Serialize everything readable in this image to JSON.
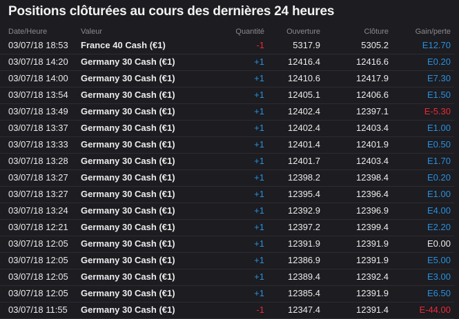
{
  "title": "Positions clôturées au cours des dernières 24 heures",
  "colors": {
    "background": "#1c1c21",
    "positive": "#2a90dc",
    "negative": "#ec2a36"
  },
  "columns": {
    "date": "Date/Heure",
    "value": "Valeur",
    "quantity": "Quantité",
    "open": "Ouverture",
    "close": "Clôture",
    "gain": "Gain/perte"
  },
  "rows": [
    {
      "date": "03/07/18 18:53",
      "value": "France 40 Cash (€1)",
      "quantity": "-1",
      "open": "5317.9",
      "close": "5305.2",
      "gain": "E12.70"
    },
    {
      "date": "03/07/18 14:20",
      "value": "Germany 30 Cash (€1)",
      "quantity": "+1",
      "open": "12416.4",
      "close": "12416.6",
      "gain": "E0.20"
    },
    {
      "date": "03/07/18 14:00",
      "value": "Germany 30 Cash (€1)",
      "quantity": "+1",
      "open": "12410.6",
      "close": "12417.9",
      "gain": "E7.30"
    },
    {
      "date": "03/07/18 13:54",
      "value": "Germany 30 Cash (€1)",
      "quantity": "+1",
      "open": "12405.1",
      "close": "12406.6",
      "gain": "E1.50"
    },
    {
      "date": "03/07/18 13:49",
      "value": "Germany 30 Cash (€1)",
      "quantity": "+1",
      "open": "12402.4",
      "close": "12397.1",
      "gain": "E-5.30"
    },
    {
      "date": "03/07/18 13:37",
      "value": "Germany 30 Cash (€1)",
      "quantity": "+1",
      "open": "12402.4",
      "close": "12403.4",
      "gain": "E1.00"
    },
    {
      "date": "03/07/18 13:33",
      "value": "Germany 30 Cash (€1)",
      "quantity": "+1",
      "open": "12401.4",
      "close": "12401.9",
      "gain": "E0.50"
    },
    {
      "date": "03/07/18 13:28",
      "value": "Germany 30 Cash (€1)",
      "quantity": "+1",
      "open": "12401.7",
      "close": "12403.4",
      "gain": "E1.70"
    },
    {
      "date": "03/07/18 13:27",
      "value": "Germany 30 Cash (€1)",
      "quantity": "+1",
      "open": "12398.2",
      "close": "12398.4",
      "gain": "E0.20"
    },
    {
      "date": "03/07/18 13:27",
      "value": "Germany 30 Cash (€1)",
      "quantity": "+1",
      "open": "12395.4",
      "close": "12396.4",
      "gain": "E1.00"
    },
    {
      "date": "03/07/18 13:24",
      "value": "Germany 30 Cash (€1)",
      "quantity": "+1",
      "open": "12392.9",
      "close": "12396.9",
      "gain": "E4.00"
    },
    {
      "date": "03/07/18 12:21",
      "value": "Germany 30 Cash (€1)",
      "quantity": "+1",
      "open": "12397.2",
      "close": "12399.4",
      "gain": "E2.20"
    },
    {
      "date": "03/07/18 12:05",
      "value": "Germany 30 Cash (€1)",
      "quantity": "+1",
      "open": "12391.9",
      "close": "12391.9",
      "gain": "E0.00"
    },
    {
      "date": "03/07/18 12:05",
      "value": "Germany 30 Cash (€1)",
      "quantity": "+1",
      "open": "12386.9",
      "close": "12391.9",
      "gain": "E5.00"
    },
    {
      "date": "03/07/18 12:05",
      "value": "Germany 30 Cash (€1)",
      "quantity": "+1",
      "open": "12389.4",
      "close": "12392.4",
      "gain": "E3.00"
    },
    {
      "date": "03/07/18 12:05",
      "value": "Germany 30 Cash (€1)",
      "quantity": "+1",
      "open": "12385.4",
      "close": "12391.9",
      "gain": "E6.50"
    },
    {
      "date": "03/07/18 11:55",
      "value": "Germany 30 Cash (€1)",
      "quantity": "-1",
      "open": "12347.4",
      "close": "12391.4",
      "gain": "E-44.00"
    }
  ]
}
